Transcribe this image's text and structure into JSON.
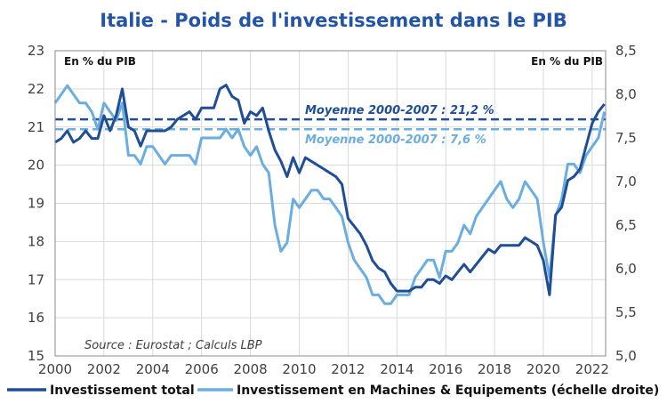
{
  "chart_data": {
    "type": "line",
    "title": "Italie - Poids de l'investissement dans le PIB",
    "unit_left": "En % du PIB",
    "unit_right": "En % du PIB",
    "source": "Source : Eurostat ; Calculs LBP",
    "x_start": 2000,
    "x_step": 0.25,
    "xlim": [
      2000,
      2022.55
    ],
    "x_ticks": [
      "2000",
      "2002",
      "2004",
      "2006",
      "2008",
      "2010",
      "2012",
      "2014",
      "2016",
      "2018",
      "2020",
      "2022"
    ],
    "ylim_left": [
      15,
      23
    ],
    "y_ticks_left": [
      "15",
      "16",
      "17",
      "18",
      "19",
      "20",
      "21",
      "22",
      "23"
    ],
    "ylim_right": [
      5.0,
      8.5
    ],
    "y_ticks_right": [
      "5,0",
      "5,5",
      "6,0",
      "6,5",
      "7,0",
      "7,5",
      "8,0",
      "8,5"
    ],
    "grid": true,
    "legend_position": "bottom",
    "series": [
      {
        "name": "Investissement total",
        "axis": "left",
        "color": "#1f4e96",
        "values": [
          20.6,
          20.7,
          20.9,
          20.6,
          20.7,
          20.9,
          20.7,
          20.7,
          21.3,
          20.9,
          21.3,
          22.0,
          21.0,
          20.9,
          20.5,
          20.9,
          20.9,
          20.9,
          20.9,
          21.0,
          21.2,
          21.3,
          21.4,
          21.2,
          21.5,
          21.5,
          21.5,
          22.0,
          22.1,
          21.8,
          21.7,
          21.1,
          21.4,
          21.3,
          21.5,
          20.9,
          20.4,
          20.1,
          19.7,
          20.2,
          19.8,
          20.2,
          20.1,
          20.0,
          19.9,
          19.8,
          19.7,
          19.5,
          18.6,
          18.4,
          18.2,
          17.9,
          17.5,
          17.3,
          17.2,
          16.9,
          16.7,
          16.7,
          16.7,
          16.8,
          16.8,
          17.0,
          17.0,
          16.9,
          17.1,
          17.0,
          17.2,
          17.4,
          17.2,
          17.4,
          17.6,
          17.8,
          17.7,
          17.9,
          17.9,
          17.9,
          17.9,
          18.1,
          18.0,
          17.9,
          17.5,
          16.6,
          18.7,
          18.9,
          19.6,
          19.7,
          19.9,
          20.5,
          21.1,
          21.4,
          21.6
        ]
      },
      {
        "name": "Investissement en Machines & Equipements (échelle droite)",
        "axis": "right",
        "color": "#6aaee0",
        "values": [
          7.9,
          8.0,
          8.1,
          8.0,
          7.9,
          7.9,
          7.8,
          7.6,
          7.9,
          7.8,
          7.7,
          7.9,
          7.3,
          7.3,
          7.2,
          7.4,
          7.4,
          7.3,
          7.2,
          7.3,
          7.3,
          7.3,
          7.3,
          7.2,
          7.5,
          7.5,
          7.5,
          7.5,
          7.6,
          7.5,
          7.6,
          7.4,
          7.3,
          7.4,
          7.2,
          7.1,
          6.5,
          6.2,
          6.3,
          6.8,
          6.7,
          6.8,
          6.9,
          6.9,
          6.8,
          6.8,
          6.7,
          6.6,
          6.3,
          6.1,
          6.0,
          5.9,
          5.7,
          5.7,
          5.6,
          5.6,
          5.7,
          5.7,
          5.7,
          5.9,
          6.0,
          6.1,
          6.1,
          5.9,
          6.2,
          6.2,
          6.3,
          6.5,
          6.4,
          6.6,
          6.7,
          6.8,
          6.9,
          7.0,
          6.8,
          6.7,
          6.8,
          7.0,
          6.9,
          6.8,
          6.3,
          5.9,
          6.6,
          6.8,
          7.2,
          7.2,
          7.1,
          7.3,
          7.4,
          7.5,
          7.8
        ]
      }
    ],
    "annotations": [
      {
        "label": "Moyenne 2000-2007 : 21,2 %",
        "axis": "left",
        "value": 21.2,
        "color": "#1f4e96",
        "style": "dashed"
      },
      {
        "label": "Moyenne 2000-2007 : 7,6 %",
        "axis": "right",
        "value": 7.6,
        "color": "#6aaee0",
        "style": "dashed"
      }
    ]
  }
}
